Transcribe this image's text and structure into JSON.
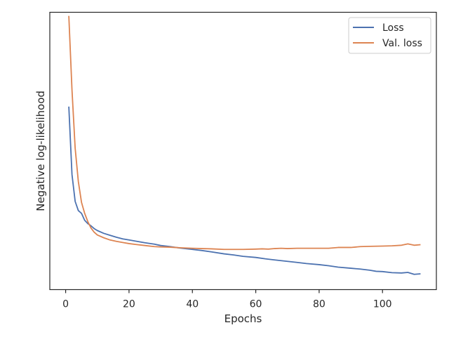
{
  "chart_data": {
    "type": "line",
    "title": "",
    "xlabel": "Epochs",
    "ylabel": "Negative log-likelihood",
    "xlim": [
      -5,
      117
    ],
    "ylim": [
      0,
      1
    ],
    "xticks": [
      0,
      20,
      40,
      60,
      80,
      100
    ],
    "y_tick_labels_shown": false,
    "grid": false,
    "legend_position": "top-right",
    "series": [
      {
        "name": "Loss",
        "color": "#4c72b0",
        "x": [
          1,
          2,
          3,
          4,
          5,
          6,
          7,
          8,
          9,
          10,
          12,
          14,
          16,
          18,
          20,
          22,
          25,
          28,
          30,
          33,
          36,
          40,
          43,
          46,
          50,
          53,
          56,
          60,
          63,
          66,
          70,
          73,
          76,
          80,
          83,
          86,
          90,
          93,
          96,
          98,
          100,
          103,
          106,
          108,
          110,
          112
        ],
        "y": [
          0.66,
          0.415,
          0.318,
          0.285,
          0.275,
          0.25,
          0.238,
          0.23,
          0.22,
          0.213,
          0.203,
          0.196,
          0.189,
          0.183,
          0.179,
          0.175,
          0.169,
          0.164,
          0.159,
          0.155,
          0.15,
          0.145,
          0.141,
          0.136,
          0.129,
          0.125,
          0.12,
          0.116,
          0.111,
          0.107,
          0.102,
          0.098,
          0.094,
          0.09,
          0.086,
          0.081,
          0.077,
          0.074,
          0.07,
          0.066,
          0.065,
          0.061,
          0.06,
          0.062,
          0.055,
          0.057
        ]
      },
      {
        "name": "Val. loss",
        "color": "#dd8452",
        "x": [
          1,
          2,
          3,
          4,
          5,
          6,
          7,
          8,
          9,
          10,
          12,
          14,
          16,
          18,
          20,
          22,
          25,
          28,
          30,
          33,
          36,
          40,
          43,
          46,
          50,
          53,
          56,
          60,
          62,
          64,
          66,
          68,
          70,
          73,
          76,
          80,
          83,
          86,
          90,
          93,
          96,
          100,
          103,
          106,
          108,
          110,
          112
        ],
        "y": [
          0.987,
          0.72,
          0.51,
          0.39,
          0.315,
          0.275,
          0.245,
          0.222,
          0.207,
          0.197,
          0.187,
          0.179,
          0.174,
          0.17,
          0.166,
          0.163,
          0.159,
          0.155,
          0.154,
          0.153,
          0.151,
          0.149,
          0.148,
          0.147,
          0.145,
          0.145,
          0.145,
          0.146,
          0.147,
          0.146,
          0.148,
          0.149,
          0.148,
          0.149,
          0.149,
          0.149,
          0.149,
          0.152,
          0.152,
          0.155,
          0.156,
          0.157,
          0.158,
          0.16,
          0.165,
          0.16,
          0.162
        ]
      }
    ]
  }
}
